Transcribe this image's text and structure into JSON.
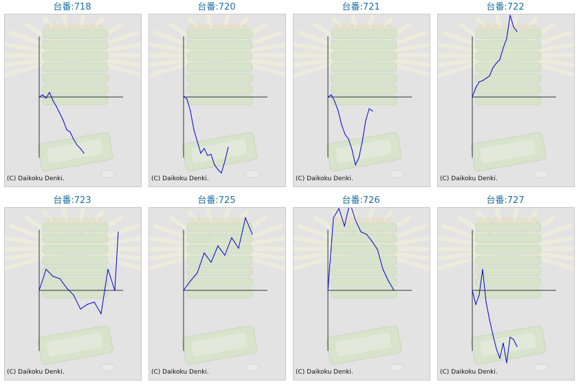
{
  "copyright": "(C) Daikoku Denki.",
  "series_color": "#0000cc",
  "title_color": "#1a6fa0",
  "chart_data": [
    {
      "type": "line",
      "title": "台番:718",
      "x": [
        0,
        5,
        10,
        15,
        20,
        25,
        30,
        35,
        40,
        45,
        50,
        55,
        60,
        65
      ],
      "values": [
        0,
        2,
        -1,
        4,
        -3,
        -8,
        -14,
        -20,
        -28,
        -30,
        -36,
        -41,
        -44,
        -48
      ]
    },
    {
      "type": "line",
      "title": "台番:720",
      "x": [
        0,
        5,
        10,
        15,
        20,
        25,
        30,
        35,
        40,
        45,
        50,
        55,
        60,
        65
      ],
      "values": [
        1,
        -2,
        -12,
        -28,
        -38,
        -48,
        -44,
        -50,
        -49,
        -58,
        -62,
        -65,
        -55,
        -43
      ]
    },
    {
      "type": "line",
      "title": "台番:721",
      "x": [
        0,
        5,
        10,
        15,
        20,
        25,
        30,
        35,
        40,
        45,
        50,
        55,
        60,
        65
      ],
      "values": [
        0,
        2,
        -4,
        -12,
        -24,
        -32,
        -36,
        -45,
        -58,
        -52,
        -38,
        -20,
        -10,
        -12
      ]
    },
    {
      "type": "line",
      "title": "台番:722",
      "x": [
        0,
        5,
        10,
        15,
        20,
        25,
        30,
        35,
        40,
        45,
        50,
        55,
        60,
        65
      ],
      "values": [
        0,
        8,
        13,
        14,
        16,
        18,
        25,
        29,
        32,
        42,
        50,
        70,
        60,
        56
      ]
    },
    {
      "type": "line",
      "title": "台番:723",
      "x": [
        0,
        10,
        20,
        30,
        40,
        50,
        60,
        70,
        80,
        90,
        100,
        110,
        115
      ],
      "values": [
        0,
        18,
        12,
        10,
        2,
        -4,
        -16,
        -12,
        -10,
        -20,
        18,
        0,
        50
      ]
    },
    {
      "type": "line",
      "title": "台番:725",
      "x": [
        0,
        10,
        20,
        30,
        40,
        50,
        60,
        70,
        80,
        90,
        100
      ],
      "values": [
        0,
        8,
        15,
        32,
        24,
        38,
        30,
        45,
        36,
        62,
        48
      ]
    },
    {
      "type": "line",
      "title": "台番:726",
      "x": [
        0,
        8,
        16,
        24,
        32,
        40,
        48,
        56,
        64,
        72,
        80,
        88,
        96
      ],
      "values": [
        0,
        62,
        70,
        55,
        75,
        60,
        50,
        48,
        42,
        35,
        18,
        8,
        0
      ]
    },
    {
      "type": "line",
      "title": "台番:727",
      "x": [
        0,
        5,
        10,
        15,
        20,
        25,
        30,
        35,
        40,
        45,
        50,
        55,
        60,
        65
      ],
      "values": [
        0,
        -12,
        -4,
        18,
        -10,
        -25,
        -38,
        -50,
        -58,
        -45,
        -62,
        -40,
        -42,
        -48
      ]
    }
  ]
}
